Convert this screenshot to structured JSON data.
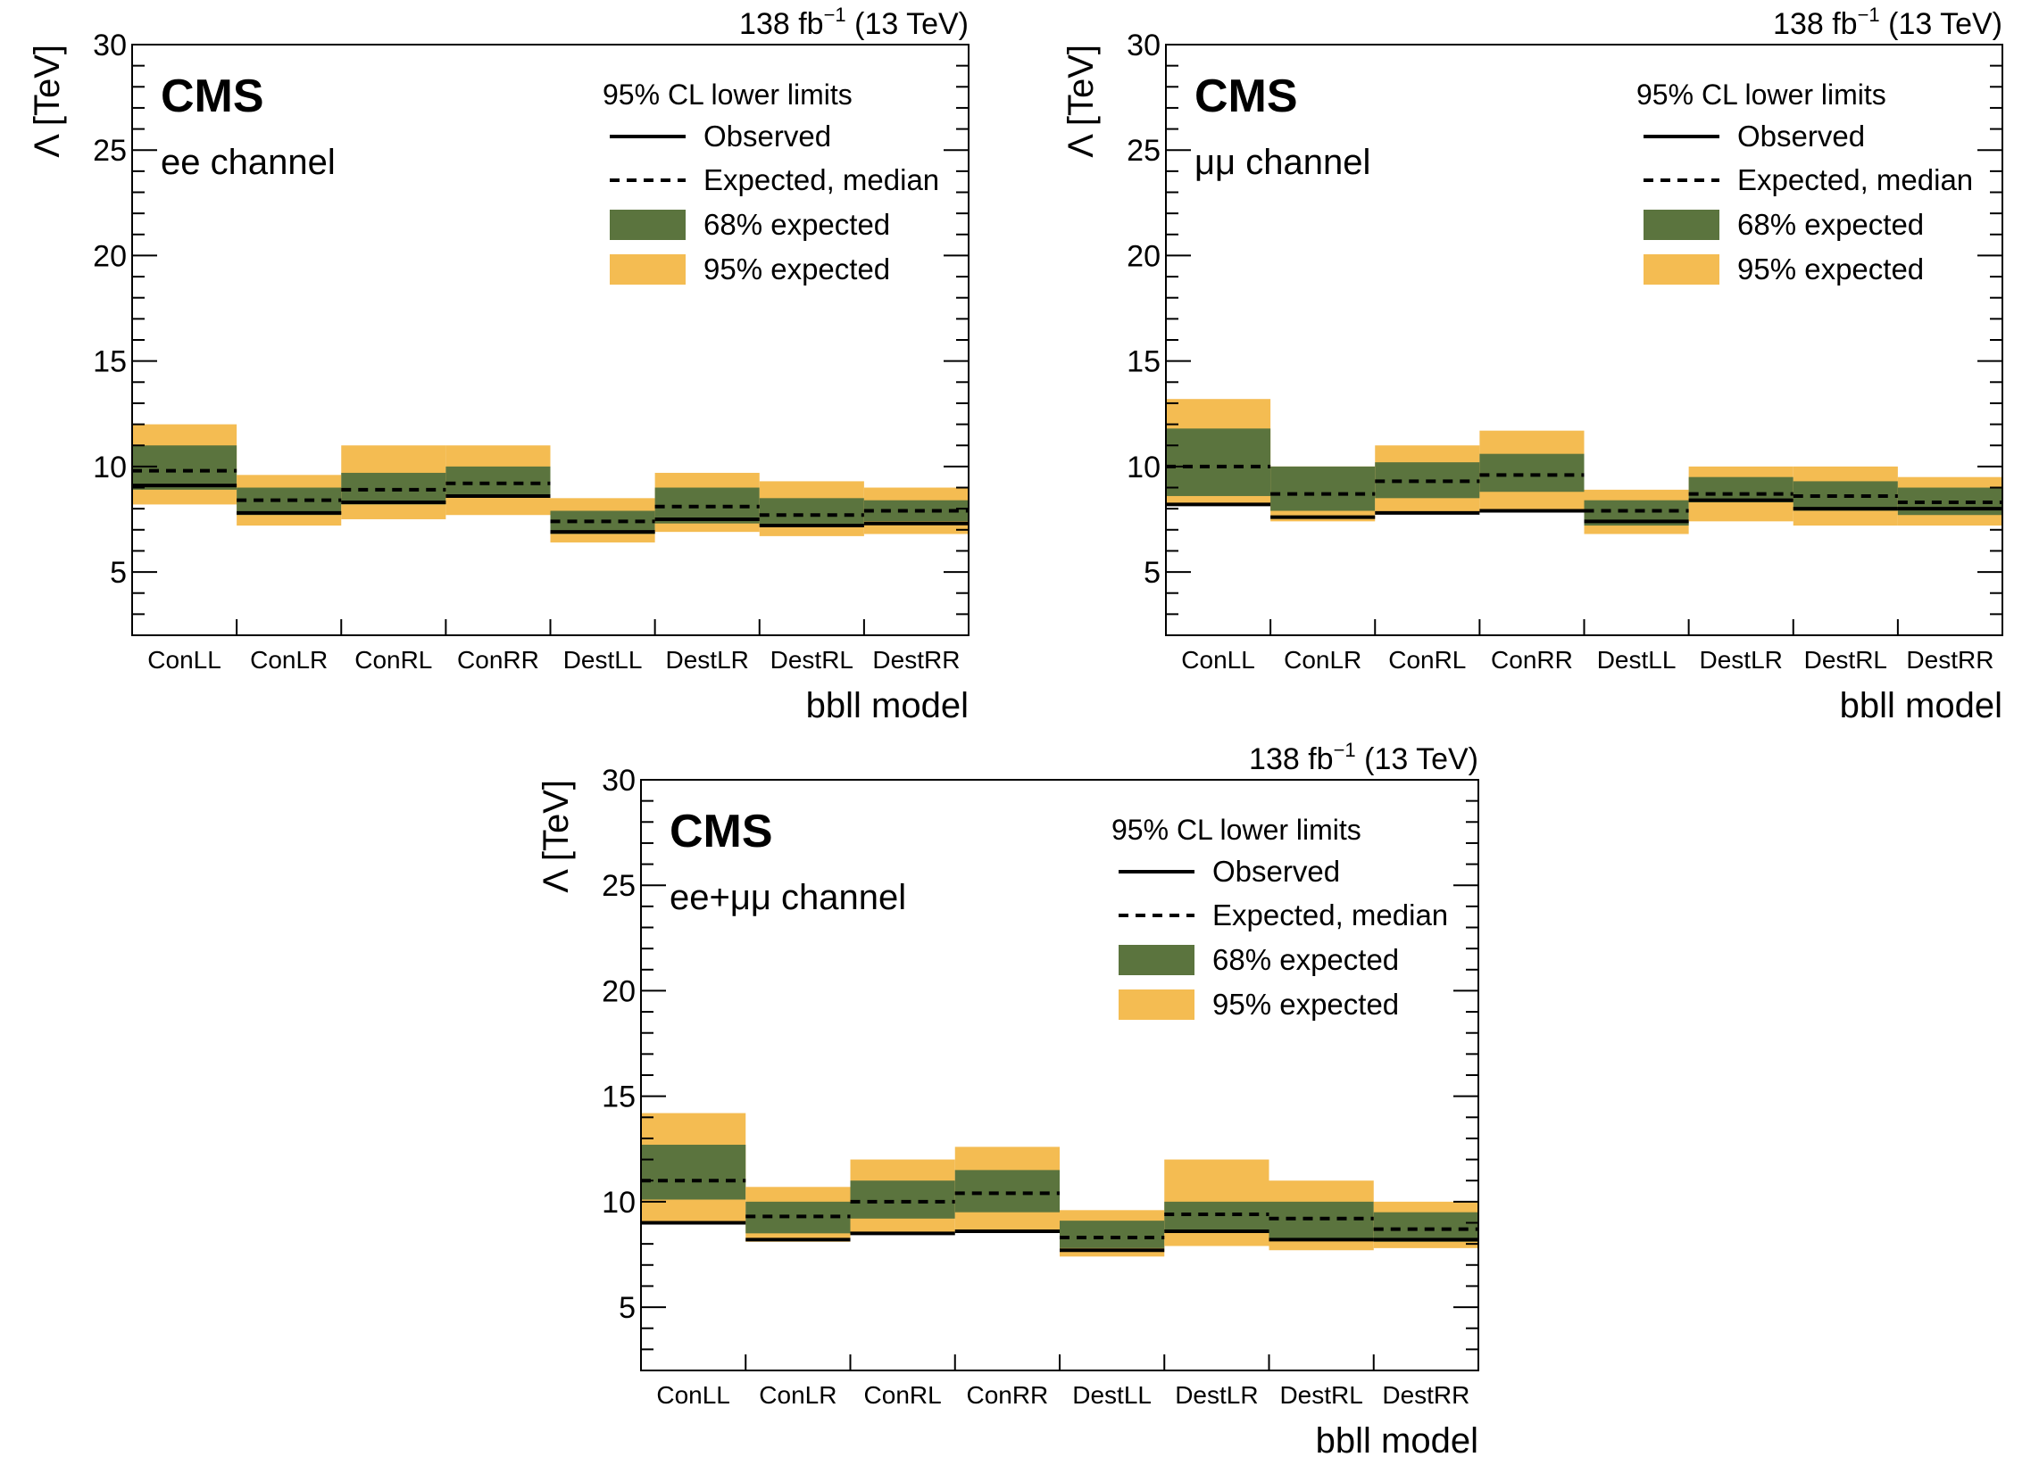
{
  "colors": {
    "band68": "#5b743e",
    "band95": "#f4bc52",
    "observed": "#000000",
    "expected": "#000000"
  },
  "chart_data": [
    {
      "type": "bar",
      "experiment": "CMS",
      "lumi_label": "138 fb",
      "lumi_exponent": "−1",
      "energy_label": "(13 TeV)",
      "channel": "ee channel",
      "ylabel": "Λ [TeV]",
      "xlabel": "bbll model",
      "ylim": [
        2,
        30
      ],
      "yticks": [
        5,
        10,
        15,
        20,
        25,
        30
      ],
      "legend": {
        "header": "95% CL lower limits",
        "observed": "Observed",
        "expected": "Expected, median",
        "band68": "68% expected",
        "band95": "95% expected",
        "position": "top-right"
      },
      "categories": [
        "ConLL",
        "ConLR",
        "ConRL",
        "ConRR",
        "DestLL",
        "DestLR",
        "DestRL",
        "DestRR"
      ],
      "observed": [
        9.1,
        7.8,
        8.3,
        8.6,
        6.9,
        7.5,
        7.2,
        7.3
      ],
      "expected": [
        9.8,
        8.4,
        8.9,
        9.2,
        7.4,
        8.1,
        7.7,
        7.9
      ],
      "band68": [
        [
          8.9,
          11.0
        ],
        [
          7.7,
          9.0
        ],
        [
          8.2,
          9.7
        ],
        [
          8.6,
          10.0
        ],
        [
          6.8,
          7.9
        ],
        [
          7.3,
          9.0
        ],
        [
          7.2,
          8.5
        ],
        [
          7.4,
          8.4
        ]
      ],
      "band95": [
        [
          8.2,
          12.0
        ],
        [
          7.2,
          9.6
        ],
        [
          7.5,
          11.0
        ],
        [
          7.7,
          11.0
        ],
        [
          6.4,
          8.5
        ],
        [
          6.9,
          9.7
        ],
        [
          6.7,
          9.3
        ],
        [
          6.8,
          9.0
        ]
      ]
    },
    {
      "type": "bar",
      "experiment": "CMS",
      "lumi_label": "138 fb",
      "lumi_exponent": "−1",
      "energy_label": "(13 TeV)",
      "channel": "μμ channel",
      "ylabel": "Λ [TeV]",
      "xlabel": "bbll model",
      "ylim": [
        2,
        30
      ],
      "yticks": [
        5,
        10,
        15,
        20,
        25,
        30
      ],
      "legend": {
        "header": "95% CL lower limits",
        "observed": "Observed",
        "expected": "Expected, median",
        "band68": "68% expected",
        "band95": "95% expected",
        "position": "top-right"
      },
      "categories": [
        "ConLL",
        "ConLR",
        "ConRL",
        "ConRR",
        "DestLL",
        "DestLR",
        "DestRL",
        "DestRR"
      ],
      "observed": [
        8.2,
        7.6,
        7.8,
        7.9,
        7.4,
        8.4,
        8.0,
        8.0
      ],
      "expected": [
        10.0,
        8.7,
        9.3,
        9.6,
        7.9,
        8.7,
        8.6,
        8.3
      ],
      "band68": [
        [
          8.6,
          11.8
        ],
        [
          7.9,
          10.0
        ],
        [
          8.5,
          10.2
        ],
        [
          8.8,
          10.6
        ],
        [
          7.2,
          8.4
        ],
        [
          8.3,
          9.5
        ],
        [
          7.9,
          9.3
        ],
        [
          7.7,
          9.0
        ]
      ],
      "band95": [
        [
          8.2,
          13.2
        ],
        [
          7.4,
          10.0
        ],
        [
          7.8,
          11.0
        ],
        [
          7.9,
          11.7
        ],
        [
          6.8,
          8.9
        ],
        [
          7.4,
          10.0
        ],
        [
          7.2,
          10.0
        ],
        [
          7.2,
          9.5
        ]
      ]
    },
    {
      "type": "bar",
      "experiment": "CMS",
      "lumi_label": "138 fb",
      "lumi_exponent": "−1",
      "energy_label": "(13 TeV)",
      "channel": "ee+μμ channel",
      "ylabel": "Λ [TeV]",
      "xlabel": "bbll model",
      "ylim": [
        2,
        30
      ],
      "yticks": [
        5,
        10,
        15,
        20,
        25,
        30
      ],
      "legend": {
        "header": "95% CL lower limits",
        "observed": "Observed",
        "expected": "Expected, median",
        "band68": "68% expected",
        "band95": "95% expected",
        "position": "top-right"
      },
      "categories": [
        "ConLL",
        "ConLR",
        "ConRL",
        "ConRR",
        "DestLL",
        "DestLR",
        "DestRL",
        "DestRR"
      ],
      "observed": [
        9.0,
        8.2,
        8.5,
        8.6,
        7.7,
        8.6,
        8.2,
        8.2
      ],
      "expected": [
        11.0,
        9.3,
        10.0,
        10.4,
        8.3,
        9.4,
        9.2,
        8.7
      ],
      "band68": [
        [
          10.1,
          12.7
        ],
        [
          8.5,
          10.0
        ],
        [
          9.2,
          11.0
        ],
        [
          9.5,
          11.5
        ],
        [
          7.8,
          9.1
        ],
        [
          8.6,
          10.0
        ],
        [
          8.2,
          10.0
        ],
        [
          8.1,
          9.5
        ]
      ],
      "band95": [
        [
          9.0,
          14.2
        ],
        [
          8.1,
          10.7
        ],
        [
          8.5,
          12.0
        ],
        [
          8.6,
          12.6
        ],
        [
          7.4,
          9.6
        ],
        [
          7.9,
          12.0
        ],
        [
          7.7,
          11.0
        ],
        [
          7.8,
          10.0
        ]
      ]
    }
  ]
}
